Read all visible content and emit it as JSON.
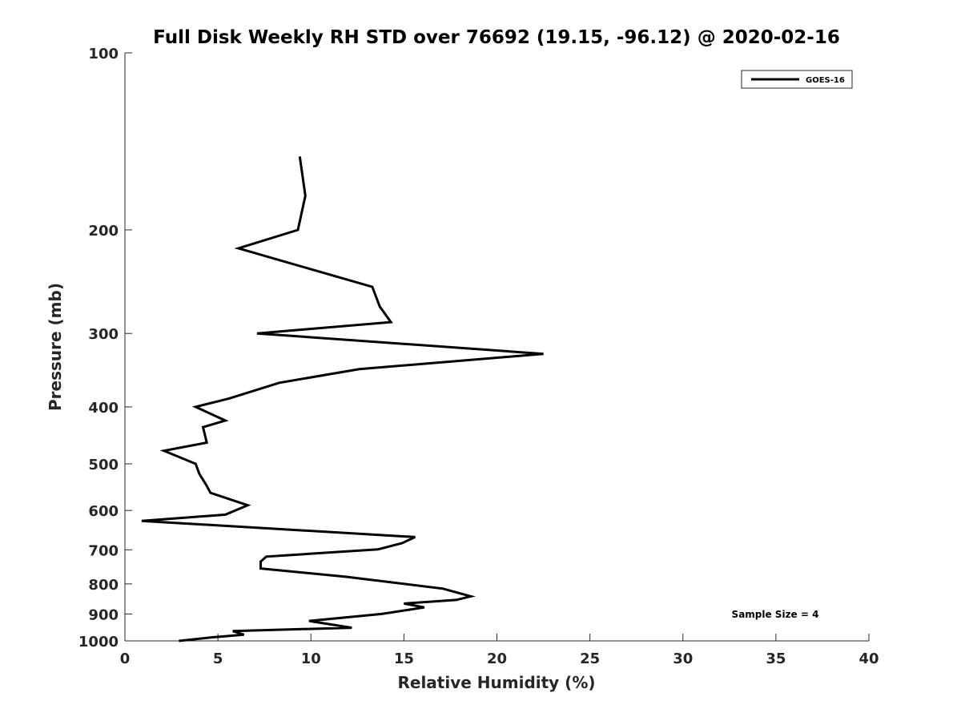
{
  "chart_data": {
    "type": "line",
    "title": "Full Disk Weekly RH STD over 76692 (19.15, -96.12) @ 2020-02-16",
    "xlabel": "Relative Humidity (%)",
    "ylabel": "Pressure (mb)",
    "xlim": [
      0,
      40
    ],
    "ylim": [
      100,
      1000
    ],
    "y_scale": "log",
    "y_reversed": true,
    "x_ticks": [
      0,
      5,
      10,
      15,
      20,
      25,
      30,
      35,
      40
    ],
    "x_tick_labels": [
      "0",
      "5",
      "10",
      "15",
      "20",
      "25",
      "30",
      "35",
      "40"
    ],
    "y_ticks": [
      100,
      200,
      300,
      400,
      500,
      600,
      700,
      800,
      900,
      1000
    ],
    "y_tick_labels": [
      "100",
      "200",
      "300",
      "400",
      "500",
      "600",
      "700",
      "800",
      "900",
      "1000"
    ],
    "grid": false,
    "legend_position": "top-right",
    "series": [
      {
        "name": "GOES-16",
        "color": "#000000",
        "points": [
          [
            9.4,
            150
          ],
          [
            9.7,
            175
          ],
          [
            9.3,
            200
          ],
          [
            6.1,
            215
          ],
          [
            13.3,
            250
          ],
          [
            13.7,
            270
          ],
          [
            14.3,
            287
          ],
          [
            7.1,
            300
          ],
          [
            22.5,
            325
          ],
          [
            12.6,
            345
          ],
          [
            8.3,
            364
          ],
          [
            5.6,
            387
          ],
          [
            3.8,
            400
          ],
          [
            5.4,
            422
          ],
          [
            4.2,
            433
          ],
          [
            4.4,
            460
          ],
          [
            2.1,
            475
          ],
          [
            3.8,
            500
          ],
          [
            4.0,
            520
          ],
          [
            4.4,
            545
          ],
          [
            4.6,
            560
          ],
          [
            6.6,
            588
          ],
          [
            5.4,
            610
          ],
          [
            0.9,
            625
          ],
          [
            15.6,
            666
          ],
          [
            14.9,
            682
          ],
          [
            13.6,
            699
          ],
          [
            7.6,
            719
          ],
          [
            7.3,
            733
          ],
          [
            7.3,
            753
          ],
          [
            11.9,
            778
          ],
          [
            17.1,
            815
          ],
          [
            18.6,
            840
          ],
          [
            17.8,
            852
          ],
          [
            15.0,
            864
          ],
          [
            16.1,
            877
          ],
          [
            13.8,
            900
          ],
          [
            9.9,
            925
          ],
          [
            12.2,
            950
          ],
          [
            5.8,
            962
          ],
          [
            6.4,
            976
          ],
          [
            4.6,
            987
          ],
          [
            2.9,
            1000
          ]
        ]
      }
    ],
    "annotations": [
      "Sample Size = 4"
    ]
  }
}
